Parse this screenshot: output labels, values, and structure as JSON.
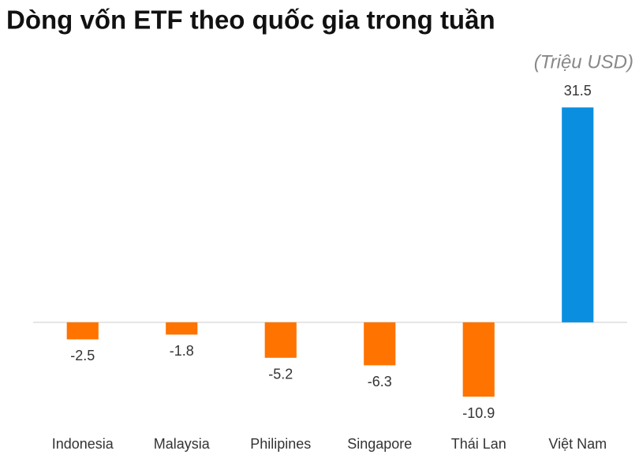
{
  "chart_data": {
    "type": "bar",
    "title": "Dòng vốn ETF theo quốc gia trong tuần",
    "unit": "(Triệu USD)",
    "categories": [
      "Indonesia",
      "Malaysia",
      "Philipines",
      "Singapore",
      "Thái Lan",
      "Việt Nam"
    ],
    "values": [
      -2.5,
      -1.8,
      -5.2,
      -6.3,
      -10.9,
      31.5
    ],
    "colors": [
      "#ff7300",
      "#ff7300",
      "#ff7300",
      "#ff7300",
      "#ff7300",
      "#0a8fe0"
    ],
    "ylim": [
      -12.5,
      35
    ]
  }
}
